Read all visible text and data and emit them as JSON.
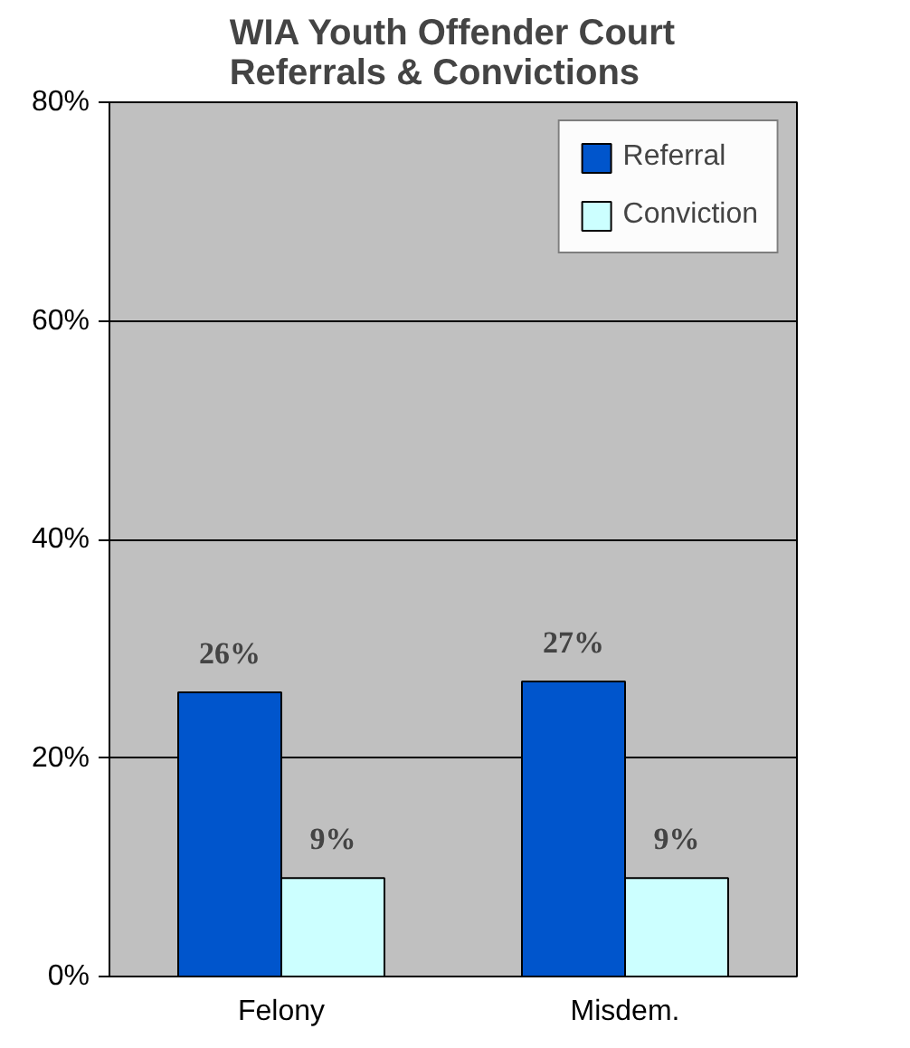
{
  "chart_data": {
    "type": "bar",
    "title": "WIA Youth Offender Court Referrals & Convictions",
    "categories": [
      "Felony",
      "Misdem."
    ],
    "series": [
      {
        "name": "Referral",
        "color": "#0055cc",
        "values": [
          26,
          27
        ],
        "value_labels": [
          "26%",
          "27%"
        ]
      },
      {
        "name": "Conviction",
        "color": "#ccffff",
        "values": [
          9,
          9
        ],
        "value_labels": [
          "9%",
          "9%"
        ]
      }
    ],
    "ylim": [
      0,
      80
    ],
    "yticks": [
      {
        "value": 0,
        "label": "0%"
      },
      {
        "value": 20,
        "label": "20%"
      },
      {
        "value": 40,
        "label": "40%"
      },
      {
        "value": 60,
        "label": "60%"
      },
      {
        "value": 80,
        "label": "80%"
      }
    ],
    "grid": "y",
    "legend": "top right"
  }
}
